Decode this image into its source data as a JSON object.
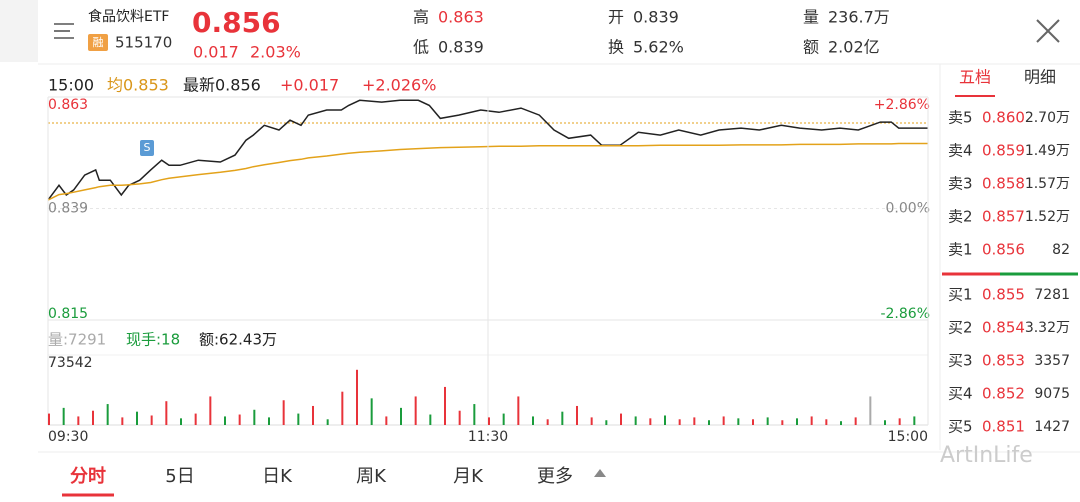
{
  "header": {
    "name": "食品饮料ETF",
    "badge": "融",
    "code": "515170",
    "price": "0.856",
    "change": "0.017",
    "change_pct": "2.03%",
    "stats": [
      {
        "label": "高",
        "value": "0.863"
      },
      {
        "label": "低",
        "value": "0.839"
      },
      {
        "label": "开",
        "value": "0.839"
      },
      {
        "label": "换",
        "value": "5.62%"
      },
      {
        "label": "量",
        "value": "236.7万"
      },
      {
        "label": "额",
        "value": "2.02亿"
      }
    ]
  },
  "info": {
    "time": "15:00",
    "avg": "均0.853",
    "latest": "最新0.856",
    "change": "+0.017",
    "change_pct": "+2.026%"
  },
  "volume_info": {
    "volume": "量:7291",
    "hand": "现手:18",
    "amount": "额:62.43万"
  },
  "chart_data": [
    {
      "type": "line",
      "x": [
        0,
        3,
        5,
        7,
        10,
        13,
        14,
        17,
        20,
        22,
        25,
        28,
        31,
        33,
        36,
        41,
        47,
        51,
        54,
        56,
        59,
        63,
        66,
        69,
        71,
        76,
        80,
        82,
        85,
        91,
        96,
        101,
        104,
        107,
        112,
        118,
        123,
        129,
        134,
        138,
        142,
        148,
        151,
        156,
        161,
        167,
        172,
        178,
        183,
        189,
        194,
        200,
        205,
        211,
        216,
        221,
        227,
        230,
        232,
        240
      ],
      "series": [
        {
          "color": "#222222",
          "values": [
            0.8408,
            0.844,
            0.8419,
            0.843,
            0.8462,
            0.8473,
            0.8451,
            0.8451,
            0.8419,
            0.844,
            0.8451,
            0.8473,
            0.8494,
            0.8483,
            0.8483,
            0.8494,
            0.849,
            0.8505,
            0.8537,
            0.8548,
            0.8569,
            0.8559,
            0.858,
            0.8569,
            0.8591,
            0.8602,
            0.8602,
            0.8612,
            0.8623,
            0.8619,
            0.8623,
            0.8623,
            0.8612,
            0.8584,
            0.8591,
            0.8602,
            0.8597,
            0.8606,
            0.8591,
            0.8559,
            0.8541,
            0.8548,
            0.8526,
            0.8526,
            0.8554,
            0.8548,
            0.8559,
            0.8548,
            0.8559,
            0.8563,
            0.8559,
            0.8569,
            0.8563,
            0.8559,
            0.8563,
            0.8559,
            0.8576,
            0.8576,
            0.8563,
            0.8563
          ]
        },
        {
          "color": "#e3a21a",
          "values": [
            0.8408,
            0.842,
            0.8422,
            0.8425,
            0.843,
            0.8435,
            0.8437,
            0.844,
            0.844,
            0.8441,
            0.8443,
            0.8446,
            0.8452,
            0.8455,
            0.8458,
            0.8463,
            0.8468,
            0.8472,
            0.8476,
            0.848,
            0.8484,
            0.8489,
            0.8493,
            0.8496,
            0.8499,
            0.8503,
            0.8507,
            0.8509,
            0.8511,
            0.8514,
            0.8517,
            0.8519,
            0.852,
            0.8521,
            0.8522,
            0.8523,
            0.8524,
            0.8524,
            0.8525,
            0.8525,
            0.8525,
            0.8525,
            0.8525,
            0.8525,
            0.8525,
            0.8526,
            0.8526,
            0.8526,
            0.8526,
            0.8527,
            0.8527,
            0.8527,
            0.8528,
            0.8528,
            0.8528,
            0.8529,
            0.8529,
            0.8529,
            0.853,
            0.853
          ]
        }
      ],
      "xlim": [
        0,
        240
      ],
      "ylim": [
        0.815,
        0.863
      ],
      "yticks": [
        0.863,
        0.839,
        0.815
      ],
      "ytick_colors": [
        "#e8333a",
        "#888888",
        "#1a9c3c"
      ],
      "y2ticks": [
        {
          "value": 0.863,
          "label": "+2.86%"
        },
        {
          "value": 0.839,
          "label": "0.00%"
        },
        {
          "value": 0.815,
          "label": "-2.86%"
        }
      ]
    },
    {
      "type": "bar",
      "x": [
        0,
        4,
        8,
        12,
        16,
        20,
        24,
        28,
        32,
        36,
        40,
        44,
        48,
        52,
        56,
        60,
        64,
        68,
        72,
        76,
        80,
        84,
        88,
        92,
        96,
        100,
        104,
        108,
        112,
        116,
        120,
        124,
        128,
        132,
        136,
        140,
        144,
        148,
        152,
        156,
        160,
        164,
        168,
        172,
        176,
        180,
        184,
        188,
        192,
        196,
        200,
        204,
        208,
        212,
        216,
        220,
        224,
        228,
        232,
        236
      ],
      "values": [
        12000,
        18000,
        9000,
        15000,
        22000,
        8000,
        14000,
        10000,
        25000,
        7000,
        12000,
        30000,
        9000,
        11000,
        16000,
        8000,
        26000,
        12000,
        20000,
        6000,
        35000,
        58000,
        28000,
        9000,
        18000,
        30000,
        11000,
        40000,
        15000,
        22000,
        8000,
        12000,
        30000,
        9000,
        6000,
        14000,
        20000,
        8000,
        5000,
        12000,
        9000,
        7000,
        10000,
        6000,
        8000,
        5000,
        9000,
        7000,
        6000,
        8000,
        5000,
        7000,
        9000,
        6000,
        4000,
        8000,
        30000,
        5000,
        7000,
        9000
      ],
      "colors": [
        "#e8333a",
        "#1a9c3c",
        "#e8333a",
        "#e8333a",
        "#1a9c3c",
        "#e8333a",
        "#1a9c3c",
        "#e8333a",
        "#e8333a",
        "#1a9c3c",
        "#e8333a",
        "#e8333a",
        "#1a9c3c",
        "#e8333a",
        "#1a9c3c",
        "#1a9c3c",
        "#e8333a",
        "#1a9c3c",
        "#e8333a",
        "#1a9c3c",
        "#e8333a",
        "#e8333a",
        "#1a9c3c",
        "#e8333a",
        "#1a9c3c",
        "#e8333a",
        "#1a9c3c",
        "#e8333a",
        "#e8333a",
        "#1a9c3c",
        "#e8333a",
        "#1a9c3c",
        "#e8333a",
        "#1a9c3c",
        "#e8333a",
        "#1a9c3c",
        "#e8333a",
        "#e8333a",
        "#1a9c3c",
        "#e8333a",
        "#1a9c3c",
        "#e8333a",
        "#1a9c3c",
        "#e8333a",
        "#e8333a",
        "#1a9c3c",
        "#e8333a",
        "#1a9c3c",
        "#e8333a",
        "#1a9c3c",
        "#e8333a",
        "#1a9c3c",
        "#e8333a",
        "#e8333a",
        "#1a9c3c",
        "#e8333a",
        "#aaaaaa",
        "#1a9c3c",
        "#e8333a",
        "#1a9c3c"
      ],
      "xlim": [
        0,
        240
      ],
      "ylim": [
        0,
        73542
      ],
      "yticks": [
        73542
      ],
      "xticks": [
        {
          "value": 0,
          "label": "09:30"
        },
        {
          "value": 120,
          "label": "11:30"
        },
        {
          "value": 240,
          "label": "15:00"
        }
      ]
    }
  ],
  "order_book": {
    "tabs": [
      "五档",
      "明细"
    ],
    "sell": [
      {
        "label": "卖5",
        "price": "0.860",
        "volume": "2.70万"
      },
      {
        "label": "卖4",
        "price": "0.859",
        "volume": "1.49万"
      },
      {
        "label": "卖3",
        "price": "0.858",
        "volume": "1.57万"
      },
      {
        "label": "卖2",
        "price": "0.857",
        "volume": "1.52万"
      },
      {
        "label": "卖1",
        "price": "0.856",
        "volume": "82"
      }
    ],
    "buy": [
      {
        "label": "买1",
        "price": "0.855",
        "volume": "7281"
      },
      {
        "label": "买2",
        "price": "0.854",
        "volume": "3.32万"
      },
      {
        "label": "买3",
        "price": "0.853",
        "volume": "3357"
      },
      {
        "label": "买4",
        "price": "0.852",
        "volume": "9075"
      },
      {
        "label": "买5",
        "price": "0.851",
        "volume": "1427"
      }
    ]
  },
  "tabs": [
    "分时",
    "5日",
    "日K",
    "周K",
    "月K",
    "更多"
  ],
  "watermark": "ArtInLife"
}
